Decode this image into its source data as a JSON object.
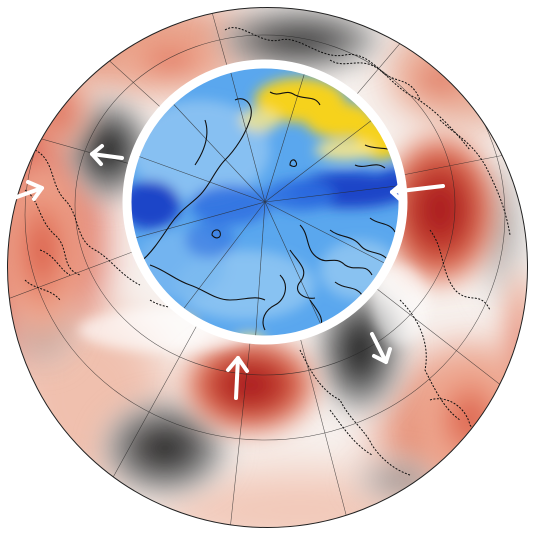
{
  "map": {
    "projection": "orthographic-polar",
    "outer_field": {
      "description_colors": {
        "positive": "#a10f1c",
        "positive_mid": "#d9553f",
        "positive_light": "#f2b19a",
        "neutral": "#ffffff",
        "negative_light": "#c8c8c8",
        "negative": "#1e1e1e"
      },
      "anomalies": [
        {
          "id": "warm-east",
          "sign": "positive",
          "strength": 1.0
        },
        {
          "id": "warm-south",
          "sign": "positive",
          "strength": 1.0
        },
        {
          "id": "warm-west",
          "sign": "positive",
          "strength": 0.6
        },
        {
          "id": "warm-north-ring",
          "sign": "positive",
          "strength": 0.45
        },
        {
          "id": "warm-southeast",
          "sign": "positive",
          "strength": 0.5
        },
        {
          "id": "cold-northwest",
          "sign": "negative",
          "strength": 1.0
        },
        {
          "id": "cold-north",
          "sign": "negative",
          "strength": 0.8
        },
        {
          "id": "cold-southeast",
          "sign": "negative",
          "strength": 1.0
        },
        {
          "id": "cold-southwest",
          "sign": "negative",
          "strength": 0.9
        },
        {
          "id": "cold-west",
          "sign": "negative",
          "strength": 0.4
        }
      ]
    },
    "inner_field": {
      "ring_color": "#ffffff",
      "colors": {
        "base": "#5aa7ee",
        "light": "#93c8f2",
        "deep": "#2f6ee0",
        "darkest": "#1a44c8",
        "yellow": "#f6d21a",
        "yellow_light": "#fbe887"
      }
    },
    "arrows": [
      {
        "id": "arrow-northwest",
        "color": "#ffffff"
      },
      {
        "id": "arrow-west",
        "color": "#ffffff"
      },
      {
        "id": "arrow-east",
        "color": "#ffffff"
      },
      {
        "id": "arrow-southeast",
        "color": "#ffffff"
      },
      {
        "id": "arrow-south",
        "color": "#ffffff"
      }
    ]
  }
}
